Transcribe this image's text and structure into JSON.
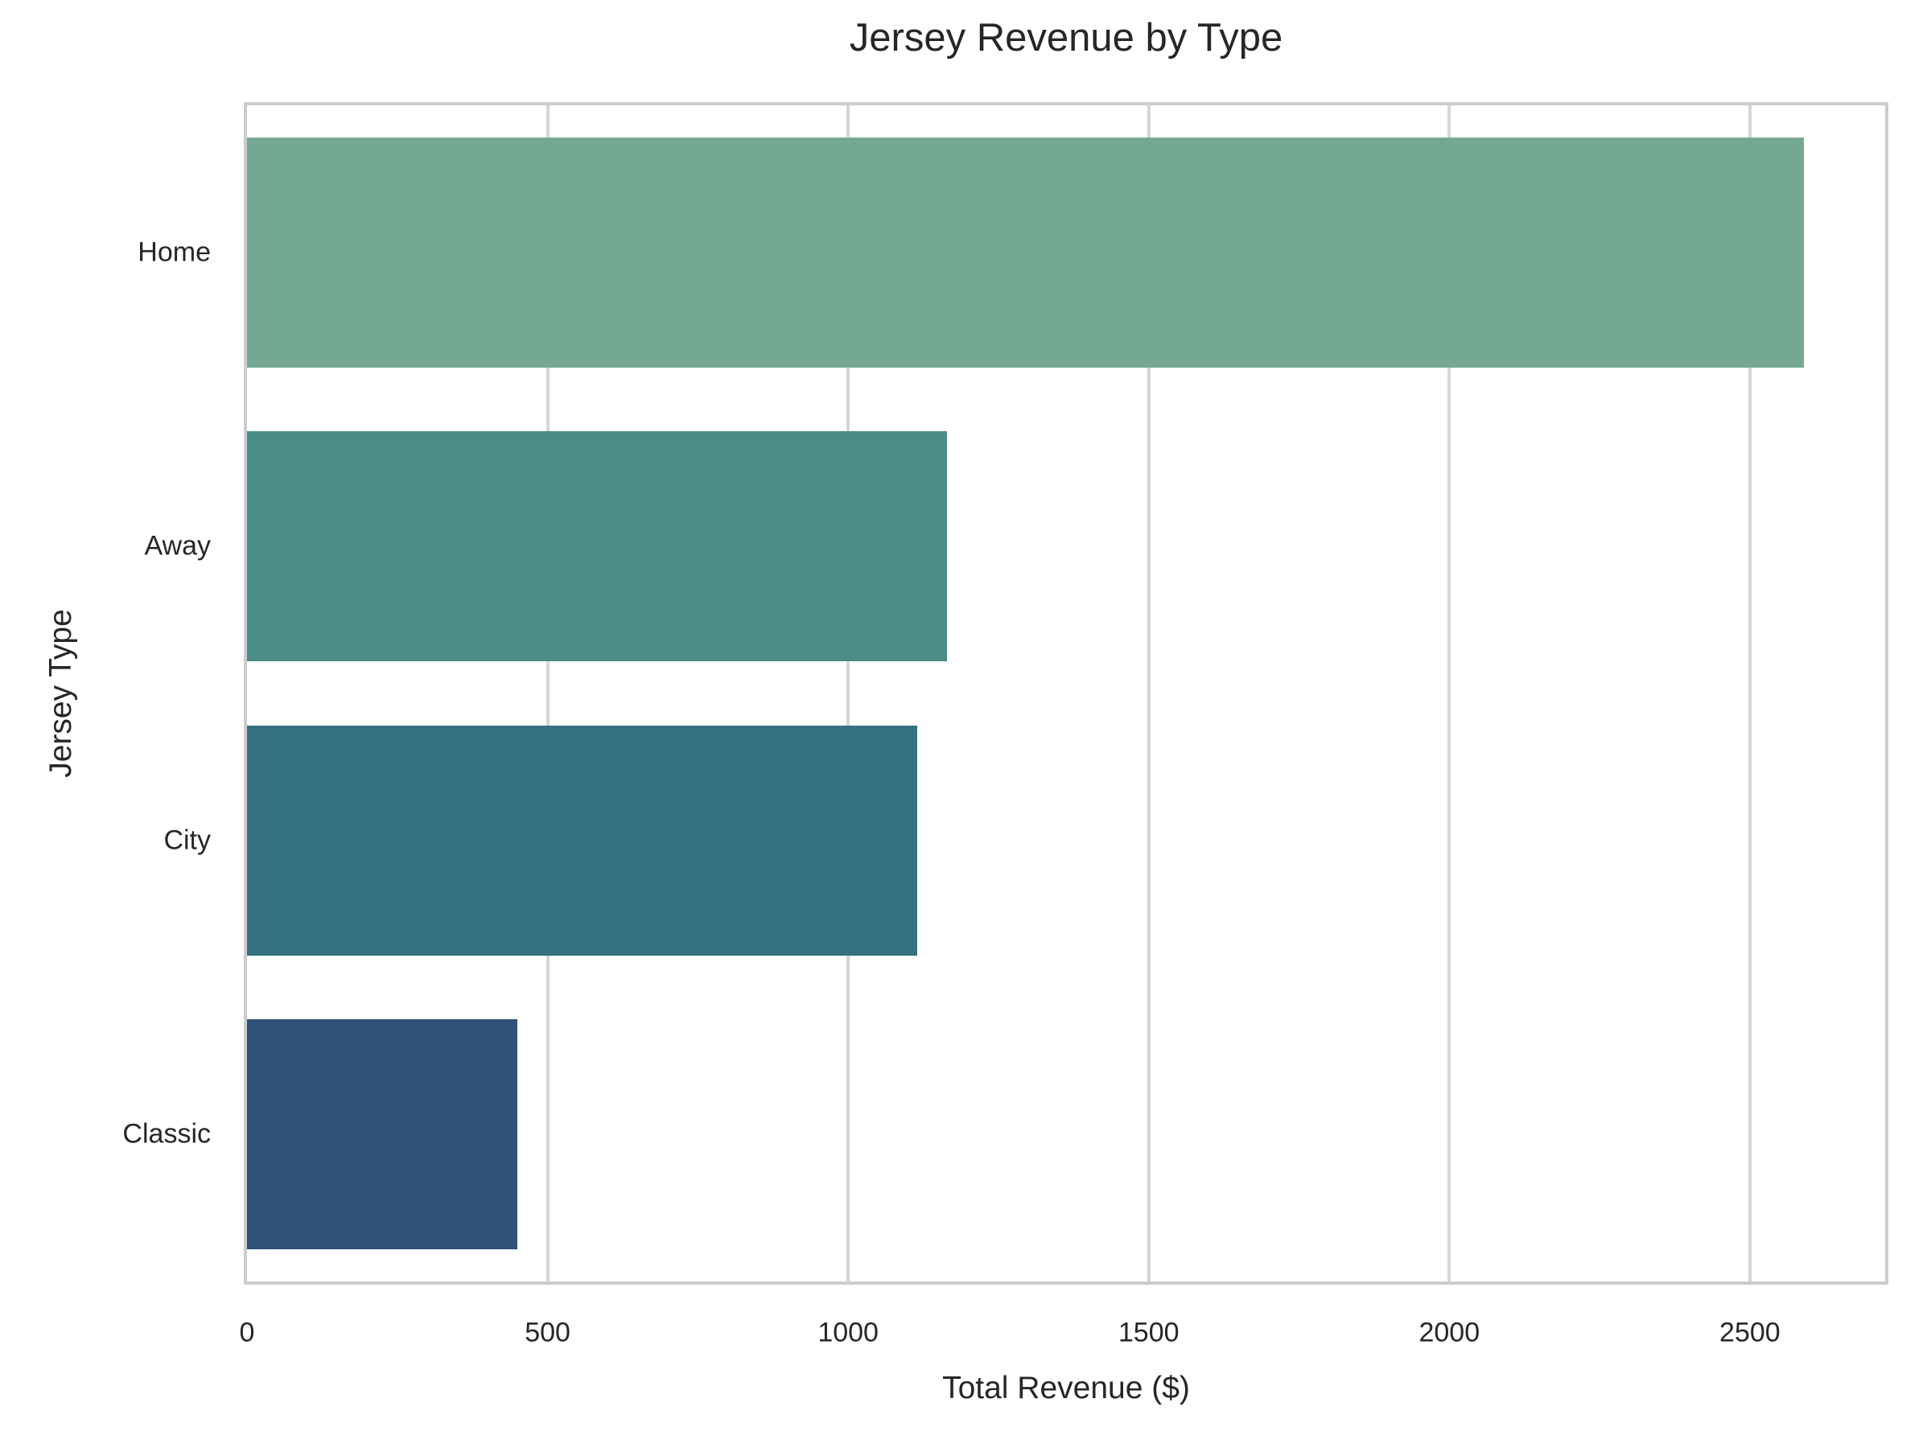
{
  "chart_data": {
    "type": "bar",
    "orientation": "horizontal",
    "title": "Jersey Revenue by Type",
    "xlabel": "Total Revenue ($)",
    "ylabel": "Jersey Type",
    "categories": [
      "Home",
      "Away",
      "City",
      "Classic"
    ],
    "values": [
      2590,
      1165,
      1115,
      450
    ],
    "xticks": [
      0,
      500,
      1000,
      1500,
      2000,
      2500
    ],
    "xlim": [
      0,
      2725
    ],
    "grid": "vertical-only",
    "legend": "none",
    "bar_colors": [
      "#74a892",
      "#4b8c86",
      "#347181",
      "#2e5278"
    ],
    "grid_color": "#d6d6d6",
    "border_color": "#cccccc",
    "text_color": "#262626",
    "background_color": "#ffffff"
  }
}
